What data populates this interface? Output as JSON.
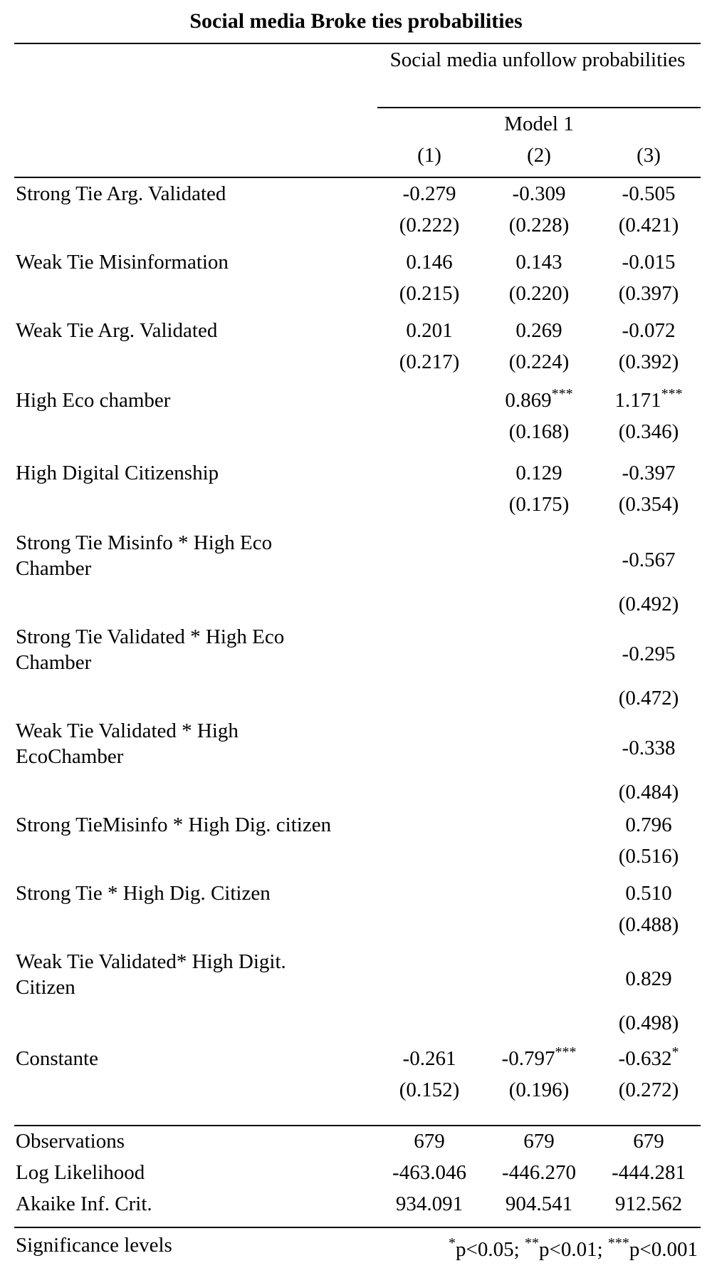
{
  "title": "Social media Broke ties probabilities",
  "header": {
    "dependent_variable": "Social media unfollow probabilities",
    "model_label": "Model 1",
    "columns": [
      "(1)",
      "(2)",
      "(3)"
    ]
  },
  "rows": [
    {
      "label": "Strong Tie Arg. Validated",
      "coef": [
        "-0.279",
        "-0.309",
        "-0.505"
      ],
      "stars": [
        "",
        "",
        ""
      ],
      "se": [
        "(0.222)",
        "(0.228)",
        "(0.421)"
      ]
    },
    {
      "label": "Weak Tie Misinformation",
      "coef": [
        "0.146",
        "0.143",
        "-0.015"
      ],
      "stars": [
        "",
        "",
        ""
      ],
      "se": [
        "(0.215)",
        "(0.220)",
        "(0.397)"
      ]
    },
    {
      "label": "Weak Tie Arg. Validated",
      "coef": [
        "0.201",
        "0.269",
        "-0.072"
      ],
      "stars": [
        "",
        "",
        ""
      ],
      "se": [
        "(0.217)",
        "(0.224)",
        "(0.392)"
      ]
    },
    {
      "label": "High Eco chamber",
      "coef": [
        "",
        "0.869",
        "1.171"
      ],
      "stars": [
        "",
        "***",
        "***"
      ],
      "se": [
        "",
        "(0.168)",
        "(0.346)"
      ]
    },
    {
      "label": "High Digital Citizenship",
      "coef": [
        "",
        "0.129",
        "-0.397"
      ],
      "stars": [
        "",
        "",
        ""
      ],
      "se": [
        "",
        "(0.175)",
        "(0.354)"
      ]
    },
    {
      "label": "Strong Tie Misinfo * High Eco Chamber",
      "coef": [
        "",
        "",
        "-0.567"
      ],
      "stars": [
        "",
        "",
        ""
      ],
      "se": [
        "",
        "",
        "(0.492)"
      ]
    },
    {
      "label": "Strong Tie Validated * High Eco Chamber",
      "coef": [
        "",
        "",
        "-0.295"
      ],
      "stars": [
        "",
        "",
        ""
      ],
      "se": [
        "",
        "",
        "(0.472)"
      ]
    },
    {
      "label": "Weak Tie Validated * High EcoChamber",
      "coef": [
        "",
        "",
        "-0.338"
      ],
      "stars": [
        "",
        "",
        ""
      ],
      "se": [
        "",
        "",
        "(0.484)"
      ]
    },
    {
      "label": "Strong TieMisinfo * High Dig. citizen",
      "coef": [
        "",
        "",
        "0.796"
      ],
      "stars": [
        "",
        "",
        ""
      ],
      "se": [
        "",
        "",
        "(0.516)"
      ]
    },
    {
      "label": "Strong Tie * High Dig. Citizen",
      "coef": [
        "",
        "",
        "0.510"
      ],
      "stars": [
        "",
        "",
        ""
      ],
      "se": [
        "",
        "",
        "(0.488)"
      ]
    },
    {
      "label": "Weak Tie Validated* High Digit. Citizen",
      "coef": [
        "",
        "",
        "0.829"
      ],
      "stars": [
        "",
        "",
        ""
      ],
      "se": [
        "",
        "",
        "(0.498)"
      ]
    },
    {
      "label": "Constante",
      "coef": [
        "-0.261",
        "-0.797",
        "-0.632"
      ],
      "stars": [
        "",
        "***",
        "*"
      ],
      "se": [
        "(0.152)",
        "(0.196)",
        "(0.272)"
      ]
    }
  ],
  "stats": [
    {
      "label": "Observations",
      "values": [
        "679",
        "679",
        "679"
      ]
    },
    {
      "label": "Log Likelihood",
      "values": [
        "-463.046",
        "-446.270",
        "-444.281"
      ]
    },
    {
      "label": "Akaike Inf. Crit.",
      "values": [
        "934.091",
        "904.541",
        "912.562"
      ]
    }
  ],
  "notes": {
    "label": "Significance levels",
    "s1": "*",
    "t1": "p<0.05; ",
    "s2": "**",
    "t2": "p<0.01; ",
    "s3": "***",
    "t3": "p<0.001"
  }
}
